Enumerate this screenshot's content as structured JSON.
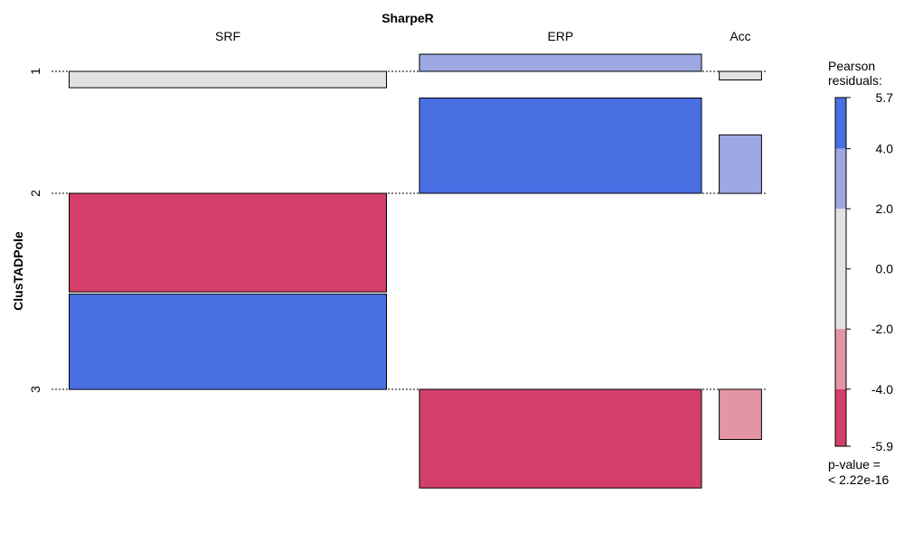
{
  "chart_data": {
    "type": "association",
    "title": "SharpeR",
    "xlabel": "SharpeR",
    "ylabel": "ClusTADPole",
    "columns": [
      "SRF",
      "ERP",
      "Acc"
    ],
    "rows": [
      "1",
      "2",
      "3"
    ],
    "column_proportions": [
      0.45,
      0.4,
      0.06
    ],
    "row_proportions": [
      0.0,
      0.5,
      0.5
    ],
    "residuals": [
      [
        -1.9,
        2.0,
        -1.0
      ],
      [
        -5.9,
        5.7,
        3.5
      ],
      [
        5.7,
        -5.9,
        -3.0
      ]
    ],
    "legend": {
      "title_line1": "Pearson",
      "title_line2": "residuals:",
      "ticks": [
        "5.7",
        "4.0",
        "2.0",
        "0.0",
        "-2.0",
        "-4.0",
        "-5.9"
      ],
      "range": [
        -5.9,
        5.7
      ],
      "bands": [
        {
          "from": 4.0,
          "to": 5.7,
          "color": "#4a6fe3"
        },
        {
          "from": 2.0,
          "to": 4.0,
          "color": "#9da8e2"
        },
        {
          "from": -2.0,
          "to": 2.0,
          "color": "#e2e2e2"
        },
        {
          "from": -4.0,
          "to": -2.0,
          "color": "#e495a5"
        },
        {
          "from": -5.9,
          "to": -4.0,
          "color": "#d33f6a"
        }
      ],
      "pvalue_line1": "p-value =",
      "pvalue_line2": "< 2.22e-16"
    }
  }
}
